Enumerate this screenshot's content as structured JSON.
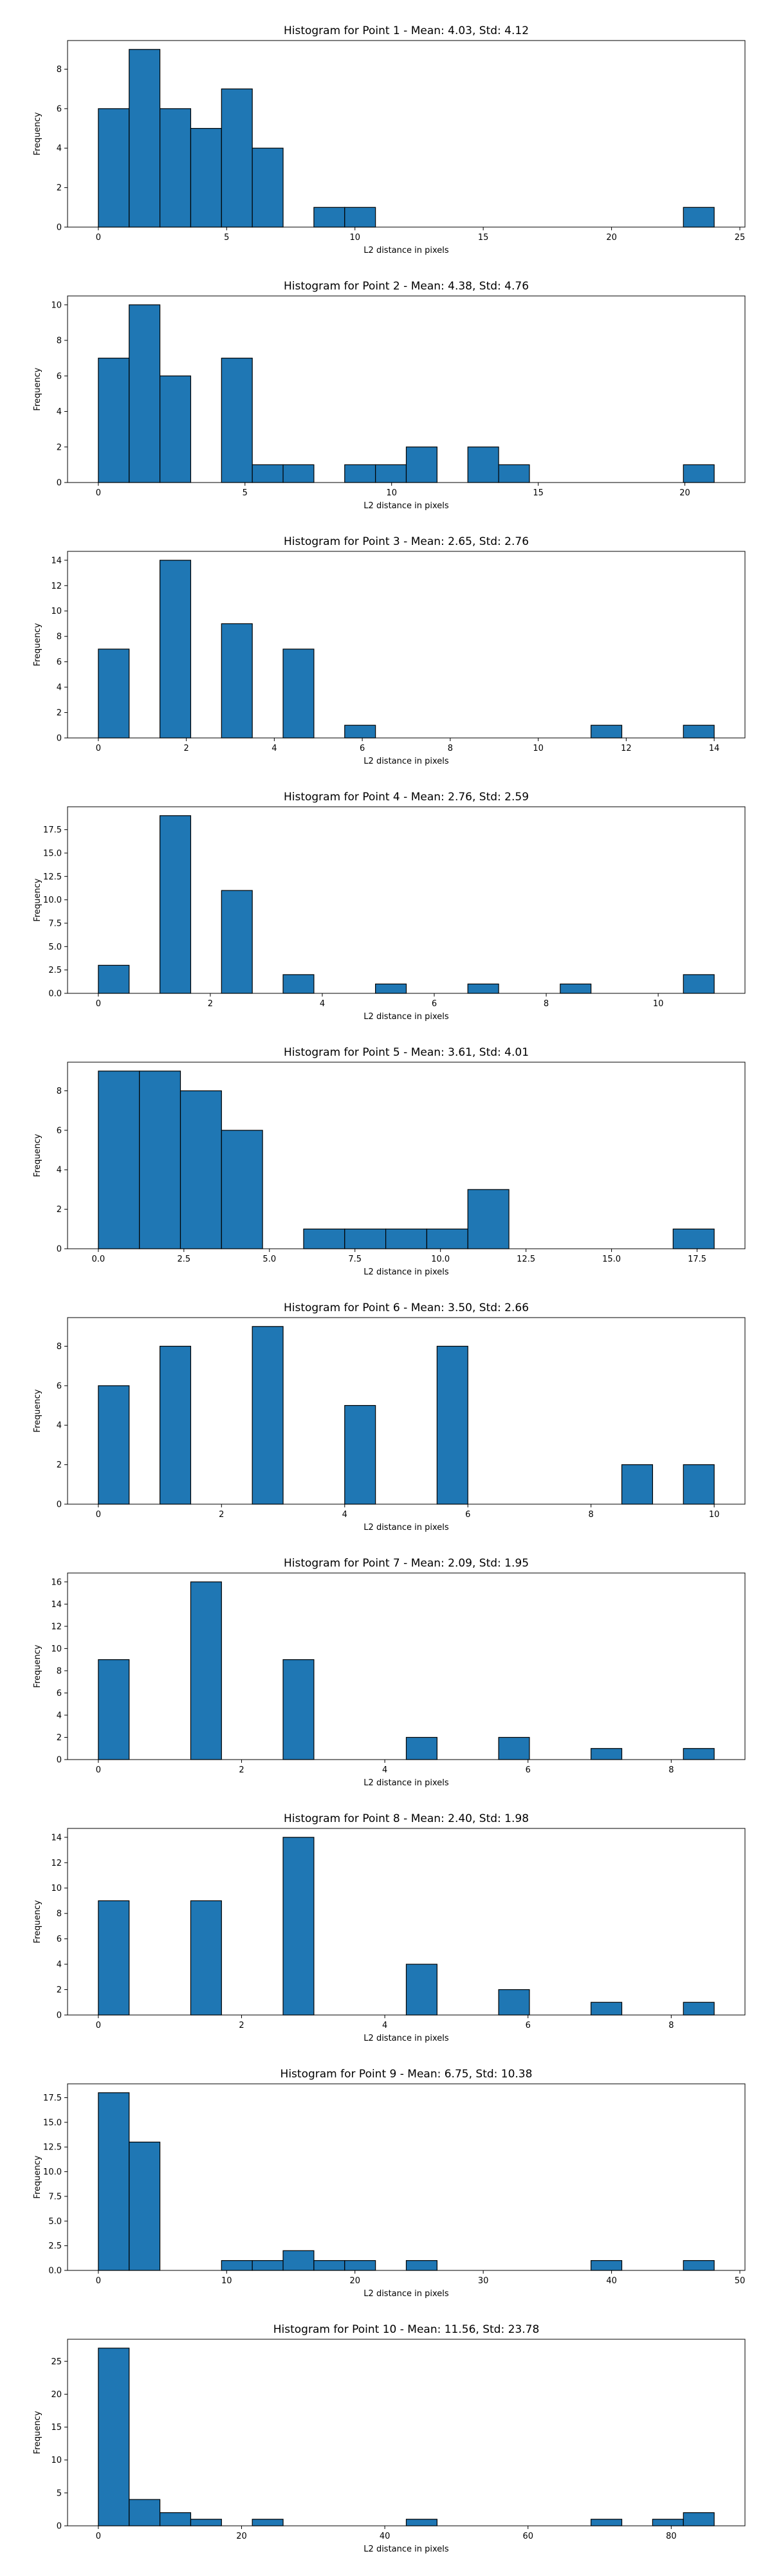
{
  "chart_data": [
    {
      "type": "bar",
      "title": "Histogram for Point 1 - Mean: 4.03, Std: 4.12",
      "xlabel": "L2 distance in pixels",
      "ylabel": "Frequency",
      "xlim": [
        -1.2,
        25.2
      ],
      "ylim": [
        0,
        9.45
      ],
      "xticks": [
        0,
        5,
        10,
        15,
        20,
        25
      ],
      "xtick_labels": [
        "0",
        "5",
        "10",
        "15",
        "20",
        "25"
      ],
      "yticks": [
        0,
        2,
        4,
        6,
        8
      ],
      "ytick_labels": [
        "0",
        "2",
        "4",
        "6",
        "8"
      ],
      "bins": [
        {
          "x0": 0,
          "x1": 1.2,
          "count": 6
        },
        {
          "x0": 1.2,
          "x1": 2.4,
          "count": 9
        },
        {
          "x0": 2.4,
          "x1": 3.6,
          "count": 6
        },
        {
          "x0": 3.6,
          "x1": 4.8,
          "count": 5
        },
        {
          "x0": 4.8,
          "x1": 6.0,
          "count": 7
        },
        {
          "x0": 6.0,
          "x1": 7.2,
          "count": 4
        },
        {
          "x0": 8.4,
          "x1": 9.6,
          "count": 1
        },
        {
          "x0": 9.6,
          "x1": 10.8,
          "count": 1
        },
        {
          "x0": 22.8,
          "x1": 24.0,
          "count": 1
        }
      ]
    },
    {
      "type": "bar",
      "title": "Histogram for Point 2 - Mean: 4.38, Std: 4.76",
      "xlabel": "L2 distance in pixels",
      "ylabel": "Frequency",
      "xlim": [
        -1.05,
        22.05
      ],
      "ylim": [
        0,
        10.5
      ],
      "xticks": [
        0,
        5,
        10,
        15,
        20
      ],
      "xtick_labels": [
        "0",
        "5",
        "10",
        "15",
        "20"
      ],
      "yticks": [
        0,
        2,
        4,
        6,
        8,
        10
      ],
      "ytick_labels": [
        "0",
        "2",
        "4",
        "6",
        "8",
        "10"
      ],
      "bins": [
        {
          "x0": 0,
          "x1": 1.05,
          "count": 7
        },
        {
          "x0": 1.05,
          "x1": 2.1,
          "count": 10
        },
        {
          "x0": 2.1,
          "x1": 3.15,
          "count": 6
        },
        {
          "x0": 4.2,
          "x1": 5.25,
          "count": 7
        },
        {
          "x0": 5.25,
          "x1": 6.3,
          "count": 1
        },
        {
          "x0": 6.3,
          "x1": 7.35,
          "count": 1
        },
        {
          "x0": 8.4,
          "x1": 9.45,
          "count": 1
        },
        {
          "x0": 9.45,
          "x1": 10.5,
          "count": 1
        },
        {
          "x0": 10.5,
          "x1": 11.55,
          "count": 2
        },
        {
          "x0": 12.6,
          "x1": 13.65,
          "count": 2
        },
        {
          "x0": 13.65,
          "x1": 14.7,
          "count": 1
        },
        {
          "x0": 19.95,
          "x1": 21.0,
          "count": 1
        }
      ]
    },
    {
      "type": "bar",
      "title": "Histogram for Point 3 - Mean: 2.65, Std: 2.76",
      "xlabel": "L2 distance in pixels",
      "ylabel": "Frequency",
      "xlim": [
        -0.7,
        14.7
      ],
      "ylim": [
        0,
        14.7
      ],
      "xticks": [
        0,
        2,
        4,
        6,
        8,
        10,
        12,
        14
      ],
      "xtick_labels": [
        "0",
        "2",
        "4",
        "6",
        "8",
        "10",
        "12",
        "14"
      ],
      "yticks": [
        0,
        2,
        4,
        6,
        8,
        10,
        12,
        14
      ],
      "ytick_labels": [
        "0",
        "2",
        "4",
        "6",
        "8",
        "10",
        "12",
        "14"
      ],
      "bins": [
        {
          "x0": 0,
          "x1": 0.7,
          "count": 7
        },
        {
          "x0": 1.4,
          "x1": 2.1,
          "count": 14
        },
        {
          "x0": 2.8,
          "x1": 3.5,
          "count": 9
        },
        {
          "x0": 4.2,
          "x1": 4.9,
          "count": 7
        },
        {
          "x0": 5.6,
          "x1": 6.3,
          "count": 1
        },
        {
          "x0": 11.2,
          "x1": 11.9,
          "count": 1
        },
        {
          "x0": 13.3,
          "x1": 14.0,
          "count": 1
        }
      ]
    },
    {
      "type": "bar",
      "title": "Histogram for Point 4 - Mean: 2.76, Std: 2.59",
      "xlabel": "L2 distance in pixels",
      "ylabel": "Frequency",
      "xlim": [
        -0.55,
        11.55
      ],
      "ylim": [
        0,
        19.95
      ],
      "xticks": [
        0,
        2,
        4,
        6,
        8,
        10
      ],
      "xtick_labels": [
        "0",
        "2",
        "4",
        "6",
        "8",
        "10"
      ],
      "yticks": [
        0,
        2.5,
        5,
        7.5,
        10,
        12.5,
        15,
        17.5
      ],
      "ytick_labels": [
        "0.0",
        "2.5",
        "5.0",
        "7.5",
        "10.0",
        "12.5",
        "15.0",
        "17.5"
      ],
      "bins": [
        {
          "x0": 0,
          "x1": 0.55,
          "count": 3
        },
        {
          "x0": 1.1,
          "x1": 1.65,
          "count": 19
        },
        {
          "x0": 2.2,
          "x1": 2.75,
          "count": 11
        },
        {
          "x0": 3.3,
          "x1": 3.85,
          "count": 2
        },
        {
          "x0": 4.95,
          "x1": 5.5,
          "count": 1
        },
        {
          "x0": 6.6,
          "x1": 7.15,
          "count": 1
        },
        {
          "x0": 8.25,
          "x1": 8.8,
          "count": 1
        },
        {
          "x0": 10.45,
          "x1": 11.0,
          "count": 2
        }
      ]
    },
    {
      "type": "bar",
      "title": "Histogram for Point 5 - Mean: 3.61, Std: 4.01",
      "xlabel": "L2 distance in pixels",
      "ylabel": "Frequency",
      "xlim": [
        -0.9,
        18.9
      ],
      "ylim": [
        0,
        9.45
      ],
      "xticks": [
        0,
        2.5,
        5,
        7.5,
        10,
        12.5,
        15,
        17.5
      ],
      "xtick_labels": [
        "0.0",
        "2.5",
        "5.0",
        "7.5",
        "10.0",
        "12.5",
        "15.0",
        "17.5"
      ],
      "yticks": [
        0,
        2,
        4,
        6,
        8
      ],
      "ytick_labels": [
        "0",
        "2",
        "4",
        "6",
        "8"
      ],
      "bins": [
        {
          "x0": 0,
          "x1": 1.2,
          "count": 9
        },
        {
          "x0": 1.2,
          "x1": 2.4,
          "count": 9
        },
        {
          "x0": 2.4,
          "x1": 3.6,
          "count": 8
        },
        {
          "x0": 3.6,
          "x1": 4.8,
          "count": 6
        },
        {
          "x0": 6.0,
          "x1": 7.2,
          "count": 1
        },
        {
          "x0": 7.2,
          "x1": 8.4,
          "count": 1
        },
        {
          "x0": 8.4,
          "x1": 9.6,
          "count": 1
        },
        {
          "x0": 9.6,
          "x1": 10.8,
          "count": 1
        },
        {
          "x0": 10.8,
          "x1": 12.0,
          "count": 3
        },
        {
          "x0": 16.8,
          "x1": 18.0,
          "count": 1
        }
      ]
    },
    {
      "type": "bar",
      "title": "Histogram for Point 6 - Mean: 3.50, Std: 2.66",
      "xlabel": "L2 distance in pixels",
      "ylabel": "Frequency",
      "xlim": [
        -0.5,
        10.5
      ],
      "ylim": [
        0,
        9.45
      ],
      "xticks": [
        0,
        2,
        4,
        6,
        8,
        10
      ],
      "xtick_labels": [
        "0",
        "2",
        "4",
        "6",
        "8",
        "10"
      ],
      "yticks": [
        0,
        2,
        4,
        6,
        8
      ],
      "ytick_labels": [
        "0",
        "2",
        "4",
        "6",
        "8"
      ],
      "bins": [
        {
          "x0": 0,
          "x1": 0.5,
          "count": 6
        },
        {
          "x0": 1.0,
          "x1": 1.5,
          "count": 8
        },
        {
          "x0": 2.5,
          "x1": 3.0,
          "count": 9
        },
        {
          "x0": 4.0,
          "x1": 4.5,
          "count": 5
        },
        {
          "x0": 5.5,
          "x1": 6.0,
          "count": 8
        },
        {
          "x0": 8.5,
          "x1": 9.0,
          "count": 2
        },
        {
          "x0": 9.5,
          "x1": 10.0,
          "count": 2
        }
      ]
    },
    {
      "type": "bar",
      "title": "Histogram for Point 7 - Mean: 2.09, Std: 1.95",
      "xlabel": "L2 distance in pixels",
      "ylabel": "Frequency",
      "xlim": [
        -0.43,
        9.03
      ],
      "ylim": [
        0,
        16.8
      ],
      "xticks": [
        0,
        2,
        4,
        6,
        8
      ],
      "xtick_labels": [
        "0",
        "2",
        "4",
        "6",
        "8"
      ],
      "yticks": [
        0,
        2,
        4,
        6,
        8,
        10,
        12,
        14,
        16
      ],
      "ytick_labels": [
        "0",
        "2",
        "4",
        "6",
        "8",
        "10",
        "12",
        "14",
        "16"
      ],
      "bins": [
        {
          "x0": 0,
          "x1": 0.43,
          "count": 9
        },
        {
          "x0": 1.29,
          "x1": 1.72,
          "count": 16
        },
        {
          "x0": 2.58,
          "x1": 3.01,
          "count": 9
        },
        {
          "x0": 4.3,
          "x1": 4.73,
          "count": 2
        },
        {
          "x0": 5.59,
          "x1": 6.02,
          "count": 2
        },
        {
          "x0": 6.88,
          "x1": 7.31,
          "count": 1
        },
        {
          "x0": 8.17,
          "x1": 8.6,
          "count": 1
        }
      ]
    },
    {
      "type": "bar",
      "title": "Histogram for Point 8 - Mean: 2.40, Std: 1.98",
      "xlabel": "L2 distance in pixels",
      "ylabel": "Frequency",
      "xlim": [
        -0.43,
        9.03
      ],
      "ylim": [
        0,
        14.7
      ],
      "xticks": [
        0,
        2,
        4,
        6,
        8
      ],
      "xtick_labels": [
        "0",
        "2",
        "4",
        "6",
        "8"
      ],
      "yticks": [
        0,
        2,
        4,
        6,
        8,
        10,
        12,
        14
      ],
      "ytick_labels": [
        "0",
        "2",
        "4",
        "6",
        "8",
        "10",
        "12",
        "14"
      ],
      "bins": [
        {
          "x0": 0,
          "x1": 0.43,
          "count": 9
        },
        {
          "x0": 1.29,
          "x1": 1.72,
          "count": 9
        },
        {
          "x0": 2.58,
          "x1": 3.01,
          "count": 14
        },
        {
          "x0": 4.3,
          "x1": 4.73,
          "count": 4
        },
        {
          "x0": 5.59,
          "x1": 6.02,
          "count": 2
        },
        {
          "x0": 6.88,
          "x1": 7.31,
          "count": 1
        },
        {
          "x0": 8.17,
          "x1": 8.6,
          "count": 1
        }
      ]
    },
    {
      "type": "bar",
      "title": "Histogram for Point 9 - Mean: 6.75, Std: 10.38",
      "xlabel": "L2 distance in pixels",
      "ylabel": "Frequency",
      "xlim": [
        -2.4,
        50.4
      ],
      "ylim": [
        0,
        18.9
      ],
      "xticks": [
        0,
        10,
        20,
        30,
        40,
        50
      ],
      "xtick_labels": [
        "0",
        "10",
        "20",
        "30",
        "40",
        "50"
      ],
      "yticks": [
        0,
        2.5,
        5,
        7.5,
        10,
        12.5,
        15,
        17.5
      ],
      "ytick_labels": [
        "0.0",
        "2.5",
        "5.0",
        "7.5",
        "10.0",
        "12.5",
        "15.0",
        "17.5"
      ],
      "bins": [
        {
          "x0": 0,
          "x1": 2.4,
          "count": 18
        },
        {
          "x0": 2.4,
          "x1": 4.8,
          "count": 13
        },
        {
          "x0": 9.6,
          "x1": 12.0,
          "count": 1
        },
        {
          "x0": 12.0,
          "x1": 14.4,
          "count": 1
        },
        {
          "x0": 14.4,
          "x1": 16.8,
          "count": 2
        },
        {
          "x0": 16.8,
          "x1": 19.2,
          "count": 1
        },
        {
          "x0": 19.2,
          "x1": 21.6,
          "count": 1
        },
        {
          "x0": 24.0,
          "x1": 26.4,
          "count": 1
        },
        {
          "x0": 38.4,
          "x1": 40.8,
          "count": 1
        },
        {
          "x0": 45.6,
          "x1": 48.0,
          "count": 1
        }
      ]
    },
    {
      "type": "bar",
      "title": "Histogram for Point 10 - Mean: 11.56, Std: 23.78",
      "xlabel": "L2 distance in pixels",
      "ylabel": "Frequency",
      "xlim": [
        -4.3,
        90.3
      ],
      "ylim": [
        0,
        28.35
      ],
      "xticks": [
        0,
        20,
        40,
        60,
        80
      ],
      "xtick_labels": [
        "0",
        "20",
        "40",
        "60",
        "80"
      ],
      "yticks": [
        0,
        5,
        10,
        15,
        20,
        25
      ],
      "ytick_labels": [
        "0",
        "5",
        "10",
        "15",
        "20",
        "25"
      ],
      "bins": [
        {
          "x0": 0,
          "x1": 4.3,
          "count": 27
        },
        {
          "x0": 4.3,
          "x1": 8.6,
          "count": 4
        },
        {
          "x0": 8.6,
          "x1": 12.9,
          "count": 2
        },
        {
          "x0": 12.9,
          "x1": 17.2,
          "count": 1
        },
        {
          "x0": 21.5,
          "x1": 25.8,
          "count": 1
        },
        {
          "x0": 43.0,
          "x1": 47.3,
          "count": 1
        },
        {
          "x0": 68.8,
          "x1": 73.1,
          "count": 1
        },
        {
          "x0": 77.4,
          "x1": 81.7,
          "count": 1
        },
        {
          "x0": 81.7,
          "x1": 86.0,
          "count": 2
        }
      ]
    }
  ],
  "colors": {
    "bar_fill": "#1f77b4",
    "bar_edge": "#000000",
    "axis": "#000000",
    "background": "#ffffff"
  }
}
